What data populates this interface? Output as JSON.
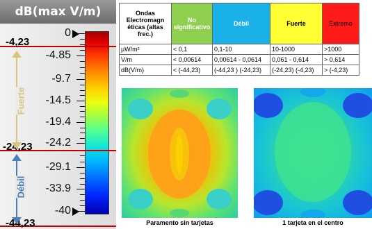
{
  "scale": {
    "title": "dB(max V/m)",
    "labels": [
      "0",
      "-4.85",
      "-9.7",
      "-14.5",
      "-19.4",
      "-24.2",
      "-29.1",
      "-33.9",
      "-40"
    ],
    "thresholds": [
      "-4,23",
      "-24,23",
      "-44,23"
    ],
    "zones": {
      "strong": "Fuerte",
      "weak": "Débil"
    }
  },
  "table": {
    "header": {
      "title": "Ondas Electromagn éticas (altas frec.)",
      "categories": [
        {
          "label": "No significativo",
          "color": "#8fd14f"
        },
        {
          "label": "Débil",
          "color": "#1ab0e8"
        },
        {
          "label": "Fuerte",
          "color": "#ffff33"
        },
        {
          "label": "Extremo",
          "color": "#ff1a1a"
        }
      ]
    },
    "rows": [
      {
        "unit": "µW/m²",
        "values": [
          "< 0,1",
          "0,1-10",
          "10-1000",
          ">1000"
        ]
      },
      {
        "unit": "V/m",
        "values": [
          "< 0,00614",
          "0,00614 - 0,0614",
          "0,061 - 0,614",
          "> 0,614"
        ]
      },
      {
        "unit": "dB(V/m)",
        "values": [
          "< (-44,23)",
          "(-44,23 ) (-24,23)",
          "(-24,23) (-4,23)",
          "> (-4,23)"
        ]
      }
    ]
  },
  "maps": {
    "left_caption": "Paramento sin tarjetas",
    "right_caption": "1 tarjeta en el centro"
  }
}
